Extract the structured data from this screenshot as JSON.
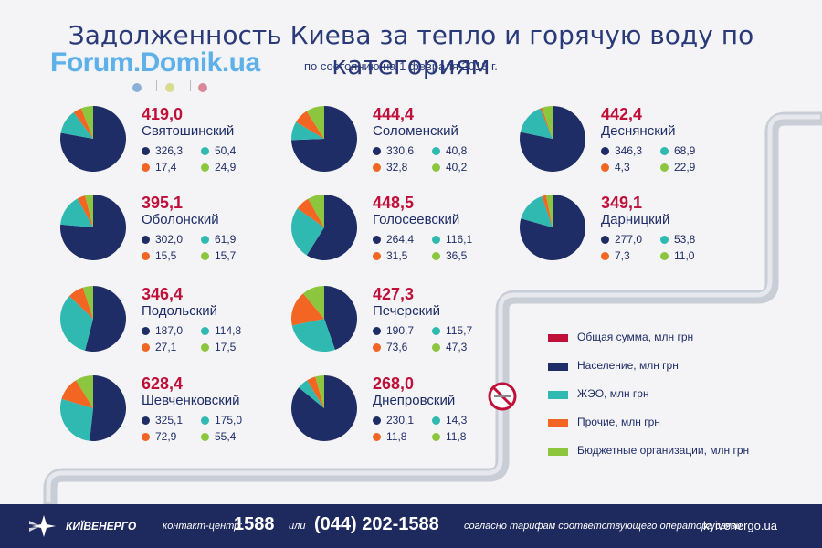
{
  "title": "Задолженность Киева за тепло и горячую воду по категориям",
  "watermark": "Forum.Domik.ua",
  "subtitle": "по состоянию на 1 февраля 2018 г.",
  "colors": {
    "total": "#c0103a",
    "population": "#1f2d66",
    "zheo": "#2fb9b0",
    "other": "#f26522",
    "budget": "#8cc63f",
    "pipe": "#c9cdd6",
    "footer": "#1e2a5e"
  },
  "chart_data": {
    "type": "pie",
    "series_names": [
      "Население, млн грн",
      "ЖЭО, млн грн",
      "Прочие, млн грн",
      "Бюджетные организации, млн грн"
    ],
    "districts": [
      {
        "name": "Святошинский",
        "total": "419,0",
        "values": [
          326.3,
          50.4,
          17.4,
          24.9
        ],
        "labels": [
          "326,3",
          "50,4",
          "17,4",
          "24,9"
        ]
      },
      {
        "name": "Соломенский",
        "total": "444,4",
        "values": [
          330.6,
          40.8,
          32.8,
          40.2
        ],
        "labels": [
          "330,6",
          "40,8",
          "32,8",
          "40,2"
        ]
      },
      {
        "name": "Деснянский",
        "total": "442,4",
        "values": [
          346.3,
          68.9,
          4.3,
          22.9
        ],
        "labels": [
          "346,3",
          "68,9",
          "4,3",
          "22,9"
        ]
      },
      {
        "name": "Оболонский",
        "total": "395,1",
        "values": [
          302.0,
          61.9,
          15.5,
          15.7
        ],
        "labels": [
          "302,0",
          "61,9",
          "15,5",
          "15,7"
        ]
      },
      {
        "name": "Голосеевский",
        "total": "448,5",
        "values": [
          264.4,
          116.1,
          31.5,
          36.5
        ],
        "labels": [
          "264,4",
          "116,1",
          "31,5",
          "36,5"
        ]
      },
      {
        "name": "Дарницкий",
        "total": "349,1",
        "values": [
          277.0,
          53.8,
          7.3,
          11.0
        ],
        "labels": [
          "277,0",
          "53,8",
          "7,3",
          "11,0"
        ]
      },
      {
        "name": "Подольский",
        "total": "346,4",
        "values": [
          187.0,
          114.8,
          27.1,
          17.5
        ],
        "labels": [
          "187,0",
          "114,8",
          "27,1",
          "17,5"
        ]
      },
      {
        "name": "Печерский",
        "total": "427,3",
        "values": [
          190.7,
          115.7,
          73.6,
          47.3
        ],
        "labels": [
          "190,7",
          "115,7",
          "73,6",
          "47,3"
        ]
      },
      {
        "name": "Шевченковский",
        "total": "628,4",
        "values": [
          325.1,
          175.0,
          72.9,
          55.4
        ],
        "labels": [
          "325,1",
          "175,0",
          "72,9",
          "55,4"
        ]
      },
      {
        "name": "Днепровский",
        "total": "268,0",
        "values": [
          230.1,
          14.3,
          11.8,
          11.8
        ],
        "labels": [
          "230,1",
          "14,3",
          "11,8",
          "11,8"
        ]
      }
    ]
  },
  "legend": [
    {
      "label": "Общая сумма, млн грн",
      "color": "#c0103a"
    },
    {
      "label": "Население, млн грн",
      "color": "#1f2d66"
    },
    {
      "label": "ЖЭО, млн грн",
      "color": "#2fb9b0"
    },
    {
      "label": "Прочие, млн грн",
      "color": "#f26522"
    },
    {
      "label": "Бюджетные организации, млн грн",
      "color": "#8cc63f"
    }
  ],
  "footer": {
    "brand": "КИЇВЕНЕРГО",
    "contact_label": "контакт-центр:",
    "short_number": "1588",
    "or_label": "или",
    "phone": "(044) 202-1588",
    "tariff_note": "согласно тарифам соответствующего оператора связи",
    "site": "kyivenergo.ua"
  }
}
